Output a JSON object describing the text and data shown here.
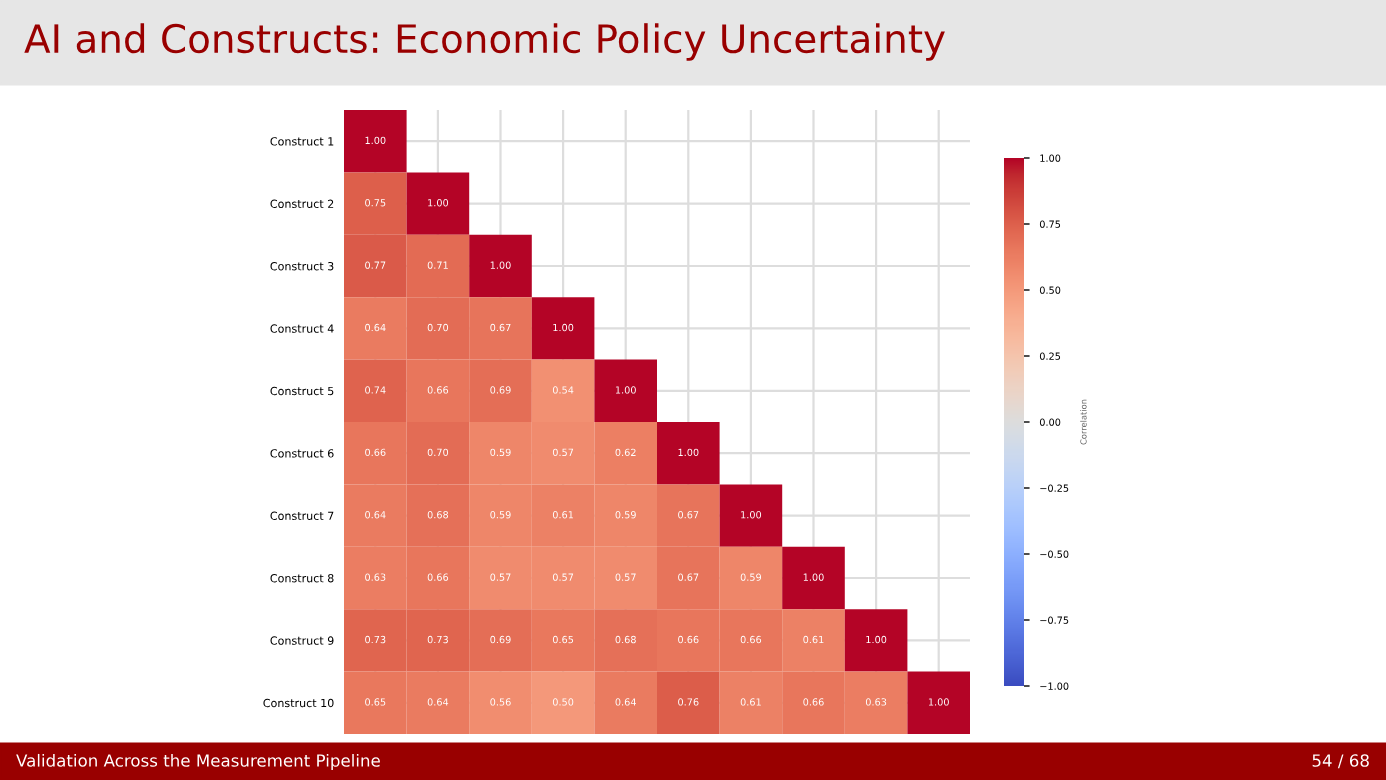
{
  "chart_data": {
    "type": "heatmap",
    "title": "AI and Constructs: Economic Policy Uncertainty",
    "categories": [
      null,
      null,
      null,
      null,
      null,
      null,
      null,
      null,
      null,
      null
    ],
    "y_categories": [
      "Construct 1",
      "Construct 2",
      "Construct 3",
      "Construct 4",
      "Construct 5",
      "Construct 6",
      "Construct 7",
      "Construct 8",
      "Construct 9",
      "Construct 10"
    ],
    "cells": [
      [
        1.0,
        null,
        null,
        null,
        null,
        null,
        null,
        null,
        null,
        null
      ],
      [
        0.75,
        1.0,
        null,
        null,
        null,
        null,
        null,
        null,
        null,
        null
      ],
      [
        0.77,
        0.71,
        1.0,
        null,
        null,
        null,
        null,
        null,
        null,
        null
      ],
      [
        0.64,
        0.7,
        0.67,
        1.0,
        null,
        null,
        null,
        null,
        null,
        null
      ],
      [
        0.74,
        0.66,
        0.69,
        0.54,
        1.0,
        null,
        null,
        null,
        null,
        null
      ],
      [
        0.66,
        0.7,
        0.59,
        0.57,
        0.62,
        1.0,
        null,
        null,
        null,
        null
      ],
      [
        0.64,
        0.68,
        0.59,
        0.61,
        0.59,
        0.67,
        1.0,
        null,
        null,
        null
      ],
      [
        0.63,
        0.66,
        0.57,
        0.57,
        0.57,
        0.67,
        0.59,
        1.0,
        null,
        null
      ],
      [
        0.73,
        0.73,
        0.69,
        0.65,
        0.68,
        0.66,
        0.66,
        0.61,
        1.0,
        null
      ],
      [
        0.65,
        0.64,
        0.56,
        0.5,
        0.64,
        0.76,
        0.61,
        0.66,
        0.63,
        1.0
      ]
    ],
    "cell_labels": [
      [
        "1.00",
        null,
        null,
        null,
        null,
        null,
        null,
        null,
        null,
        null
      ],
      [
        "0.75",
        "1.00",
        null,
        null,
        null,
        null,
        null,
        null,
        null,
        null
      ],
      [
        "0.77",
        "0.71",
        "1.00",
        null,
        null,
        null,
        null,
        null,
        null,
        null
      ],
      [
        "0.64",
        "0.70",
        "0.67",
        "1.00",
        null,
        null,
        null,
        null,
        null,
        null
      ],
      [
        "0.74",
        "0.66",
        "0.69",
        "0.54",
        "1.00",
        null,
        null,
        null,
        null,
        null
      ],
      [
        "0.66",
        "0.70",
        "0.59",
        "0.57",
        "0.62",
        "1.00",
        null,
        null,
        null,
        null
      ],
      [
        "0.64",
        "0.68",
        "0.59",
        "0.61",
        "0.59",
        "0.67",
        "1.00",
        null,
        null,
        null
      ],
      [
        "0.63",
        "0.66",
        "0.57",
        "0.57",
        "0.57",
        "0.67",
        "0.59",
        "1.00",
        null,
        null
      ],
      [
        "0.73",
        "0.73",
        "0.69",
        "0.65",
        "0.68",
        "0.66",
        "0.66",
        "0.61",
        "1.00",
        null
      ],
      [
        "0.65",
        "0.64",
        "0.56",
        "0.50",
        "0.64",
        "0.76",
        "0.61",
        "0.66",
        "0.63",
        "1.00"
      ]
    ],
    "clim": [
      -1.0,
      1.0
    ],
    "cticks": [
      {
        "value": -1.0,
        "label": "−1.00"
      },
      {
        "value": -0.75,
        "label": "−0.75"
      },
      {
        "value": -0.5,
        "label": "−0.50"
      },
      {
        "value": -0.25,
        "label": "−0.25"
      },
      {
        "value": 0.0,
        "label": "0.00"
      },
      {
        "value": 0.25,
        "label": "0.25"
      },
      {
        "value": 0.5,
        "label": "0.50"
      },
      {
        "value": 0.75,
        "label": "0.75"
      },
      {
        "value": 1.0,
        "label": "1.00"
      }
    ],
    "clabel": "Correlation",
    "grid": true,
    "tick_labels": "y",
    "annotations": [
      "Validation Across the Measurement Pipeline",
      "54 / 68"
    ]
  }
}
